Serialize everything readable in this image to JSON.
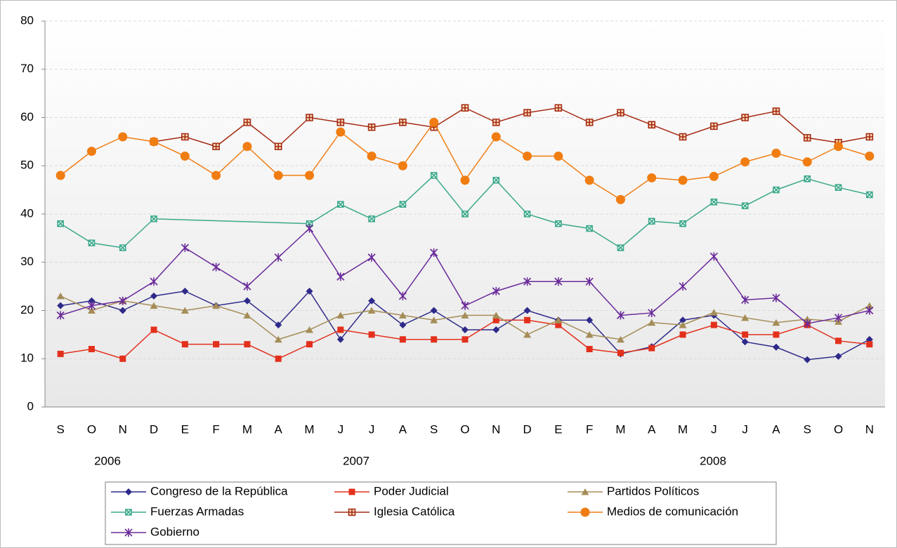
{
  "chart_data": {
    "type": "line",
    "categories": [
      "S",
      "O",
      "N",
      "D",
      "E",
      "F",
      "M",
      "A",
      "M",
      "J",
      "J",
      "A",
      "S",
      "O",
      "N",
      "D",
      "E",
      "F",
      "M",
      "A",
      "M",
      "J",
      "J",
      "A",
      "S",
      "O",
      "N"
    ],
    "year_labels": [
      "2006",
      "2007",
      "2008"
    ],
    "ylim": [
      0,
      80
    ],
    "yticks": [
      0,
      10,
      20,
      30,
      40,
      50,
      60,
      70,
      80
    ],
    "grid": true,
    "series": [
      {
        "name": "Congreso de la República",
        "color": "#2e2a8a",
        "marker": "diamond",
        "values": [
          21,
          22,
          20,
          23,
          24,
          21,
          22,
          17,
          24,
          14,
          22,
          17,
          20,
          16,
          16,
          20,
          18,
          18,
          11,
          12.5,
          18,
          19,
          13.5,
          12.4,
          9.8,
          10.5,
          14
        ]
      },
      {
        "name": "Poder Judicial",
        "color": "#e3301c",
        "marker": "square",
        "values": [
          11,
          12,
          10,
          16,
          13,
          13,
          13,
          10,
          13,
          16,
          15,
          14,
          14,
          14,
          18,
          18,
          17,
          12,
          11.2,
          12.2,
          15,
          17,
          15,
          15,
          17,
          13.7,
          13
        ]
      },
      {
        "name": "Partidos Políticos",
        "color": "#a58d57",
        "marker": "triangle",
        "values": [
          23,
          20,
          22,
          21,
          20,
          21,
          19,
          14,
          16,
          19,
          20,
          19,
          18,
          19,
          19,
          15,
          18,
          15,
          14,
          17.5,
          17,
          19.6,
          18.5,
          17.5,
          18.2,
          17.7,
          21
        ]
      },
      {
        "name": "Fuerzas Armadas",
        "color": "#3aa88a",
        "marker": "xsquare",
        "values": [
          38,
          34,
          33,
          39,
          null,
          null,
          null,
          null,
          38,
          42,
          39,
          42,
          48,
          40,
          47,
          40,
          38,
          37,
          33,
          38.5,
          38,
          42.5,
          41.7,
          45,
          47.3,
          45.5,
          44
        ]
      },
      {
        "name": "Iglesia Católica",
        "color": "#a52a12",
        "marker": "plussquare",
        "values": [
          null,
          null,
          null,
          55,
          56,
          54,
          59,
          54,
          60,
          59,
          58,
          59,
          58,
          62,
          59,
          61,
          62,
          59,
          61,
          58.5,
          56,
          58.2,
          60,
          61.3,
          55.8,
          54.8,
          56
        ]
      },
      {
        "name": "Medios de comunicación",
        "color": "#f07d12",
        "marker": "circle",
        "values": [
          48,
          53,
          56,
          55,
          52,
          48,
          54,
          48,
          48,
          57,
          52,
          50,
          59,
          47,
          56,
          52,
          52,
          47,
          43,
          47.5,
          47,
          47.8,
          50.8,
          52.6,
          50.8,
          54,
          52
        ]
      },
      {
        "name": "Gobierno",
        "color": "#6a2a9a",
        "marker": "star",
        "values": [
          19,
          21,
          22,
          26,
          33,
          29,
          25,
          31,
          37,
          27,
          31,
          23,
          32,
          21,
          24,
          26,
          26,
          26,
          19,
          19.5,
          25,
          31.2,
          22.2,
          22.6,
          17.3,
          18.5,
          20
        ]
      }
    ]
  }
}
